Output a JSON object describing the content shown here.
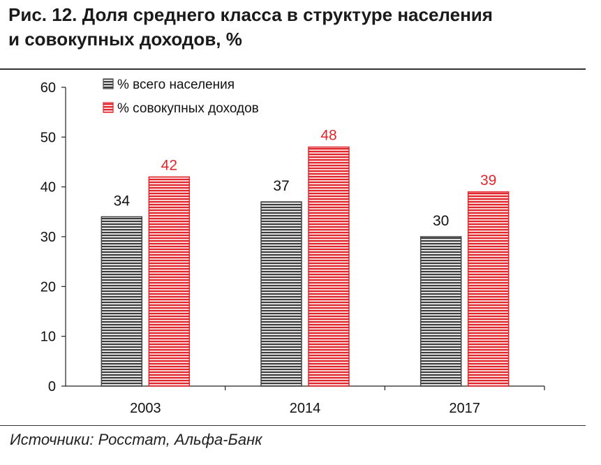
{
  "title_line1": "Рис. 12. Доля среднего класса в структуре населения",
  "title_line2": "и совокупных доходов, %",
  "source": "Источники: Росстат, Альфа-Банк",
  "colors": {
    "population": "#444444",
    "income": "#e0262c",
    "income_text": "#e0262c",
    "population_text": "#111111"
  },
  "chart_data": {
    "type": "bar",
    "categories": [
      "2003",
      "2014",
      "2017"
    ],
    "series": [
      {
        "name": "% всего населения",
        "values": [
          34,
          37,
          30
        ],
        "labels": [
          "34",
          "37",
          "30"
        ]
      },
      {
        "name": "% совокупных доходов",
        "values": [
          42,
          48,
          39
        ],
        "labels": [
          "42",
          "48",
          "39"
        ]
      }
    ],
    "ylim": [
      0,
      60
    ],
    "yticks": [
      "0",
      "10",
      "20",
      "30",
      "40",
      "50",
      "60"
    ],
    "grid": false,
    "legend": "top-left"
  }
}
